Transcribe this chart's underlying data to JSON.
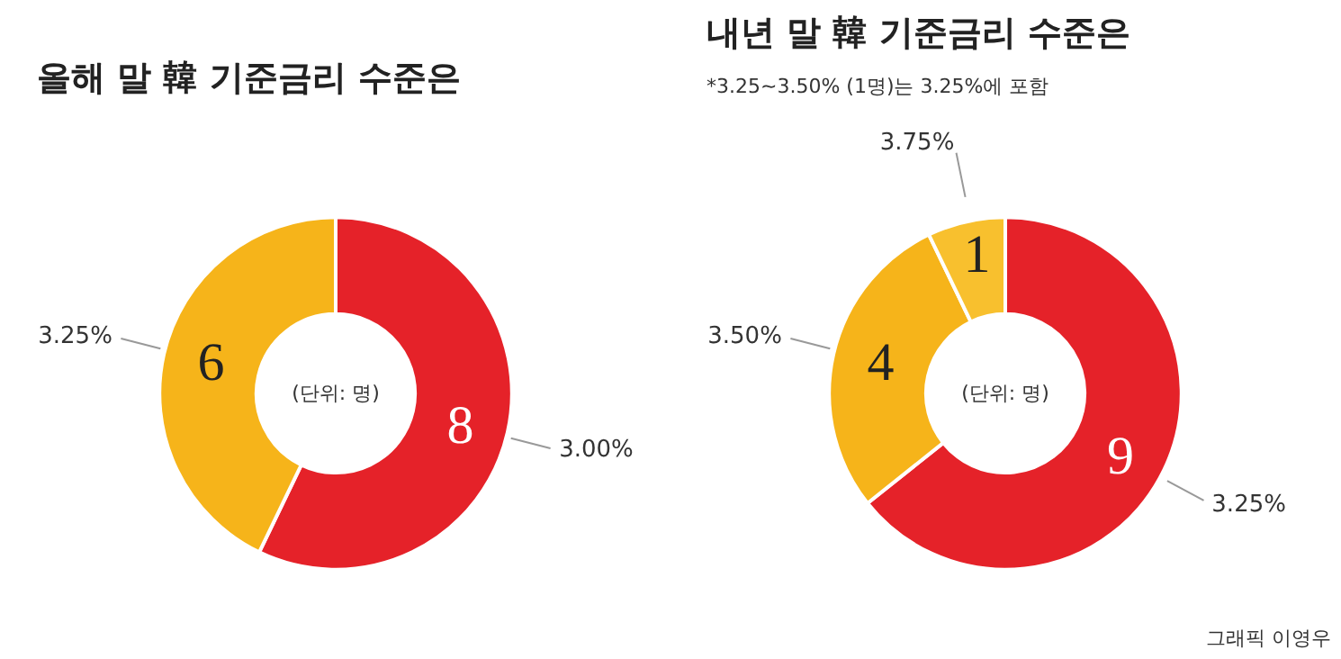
{
  "chart_data": [
    {
      "type": "donut",
      "title": "올해 말 韓 기준금리 수준은",
      "categories": [
        "3.00%",
        "3.25%"
      ],
      "values": [
        8,
        6
      ],
      "colors": [
        "#e52229",
        "#f6b41a"
      ],
      "data_labels": true,
      "annotations": [
        "(단위: 명)"
      ]
    },
    {
      "type": "donut",
      "title": "내년 말 韓 기준금리 수준은",
      "subtitle": "*3.25~3.50% (1명)는 3.25%에 포함",
      "categories": [
        "3.25%",
        "3.50%",
        "3.75%"
      ],
      "values": [
        9,
        4,
        1
      ],
      "colors": [
        "#e52229",
        "#f6b41a",
        "#f8c02e"
      ],
      "data_labels": true,
      "annotations": [
        "(단위: 명)",
        "그래픽 이영우"
      ]
    }
  ]
}
